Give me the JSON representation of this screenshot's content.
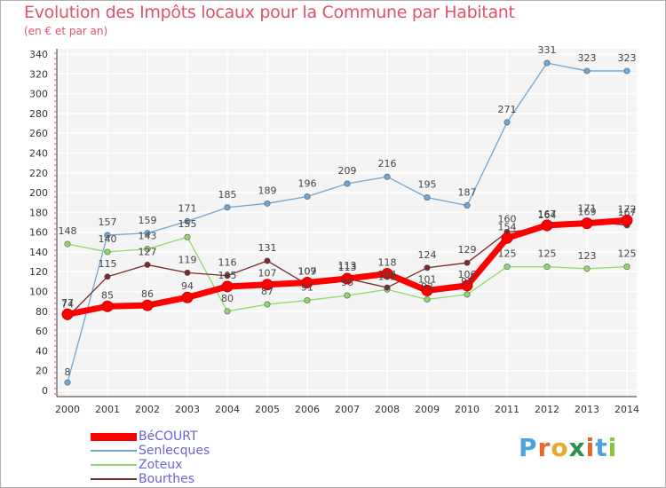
{
  "header": {
    "title": "Evolution des Impôts locaux pour la Commune par Habitant",
    "subtitle": "(en € et par an)"
  },
  "logo": {
    "text": "Proxiti",
    "letters": [
      "P",
      "r",
      "o",
      "x",
      "i",
      "t",
      "i"
    ],
    "colors": [
      "#4aa3df",
      "#e9652f",
      "#e9a72f",
      "#2d8e4f",
      "#e9652f",
      "#4aa3df",
      "#89c43f"
    ]
  },
  "chart_data": {
    "type": "line",
    "title": "Evolution des Impôts locaux pour la Commune par Habitant",
    "subtitle": "(en € et par an)",
    "x": [
      "2000",
      "2001",
      "2002",
      "2003",
      "2004",
      "2005",
      "2006",
      "2007",
      "2008",
      "2009",
      "2010",
      "2011",
      "2012",
      "2013",
      "2014"
    ],
    "ylim": [
      0,
      340
    ],
    "yticks": [
      "0",
      "20",
      "40",
      "60",
      "80",
      "100",
      "120",
      "140",
      "160",
      "180",
      "200",
      "220",
      "240",
      "260",
      "280",
      "300",
      "320",
      "340"
    ],
    "grid": true,
    "legend_position": "bottom-left",
    "series": [
      {
        "name": "BéCOURT",
        "color": "#ff0000",
        "values": [
          77,
          85,
          86,
          94,
          105,
          107,
          109,
          113,
          118,
          101,
          106,
          154,
          167,
          169,
          172
        ],
        "labels": [
          "77",
          "85",
          "86",
          "94",
          "105",
          "107",
          "109",
          "113",
          "118",
          "101",
          "106",
          "154",
          "167",
          "169",
          "172"
        ]
      },
      {
        "name": "Senlecques",
        "color": "#6fa7d6",
        "values": [
          8,
          157,
          159,
          171,
          185,
          189,
          196,
          209,
          216,
          195,
          187,
          271,
          331,
          323,
          323
        ],
        "labels": [
          "8",
          "157",
          "159",
          "171",
          "185",
          "189",
          "196",
          "209",
          "216",
          "195",
          "187",
          "271",
          "331",
          "323",
          "323"
        ]
      },
      {
        "name": "Zoteux",
        "color": "#8fd96a",
        "values": [
          148,
          140,
          143,
          155,
          80,
          87,
          91,
          96,
          102,
          92,
          97,
          125,
          125,
          123,
          125
        ],
        "labels": [
          "148",
          "140",
          "143",
          "155",
          "80",
          "87",
          "91",
          "96",
          "102",
          "92",
          "97",
          "125",
          "125",
          "123",
          "125"
        ]
      },
      {
        "name": "Bourthes",
        "color": "#7a2a2a",
        "values": [
          74,
          115,
          127,
          119,
          116,
          131,
          107,
          113,
          104,
          124,
          129,
          160,
          164,
          171,
          167
        ],
        "labels": [
          "74",
          "115",
          "127",
          "119",
          "116",
          "131",
          "107",
          "113",
          "104",
          "124",
          "129",
          "160",
          "164",
          "171",
          "167"
        ]
      }
    ]
  }
}
